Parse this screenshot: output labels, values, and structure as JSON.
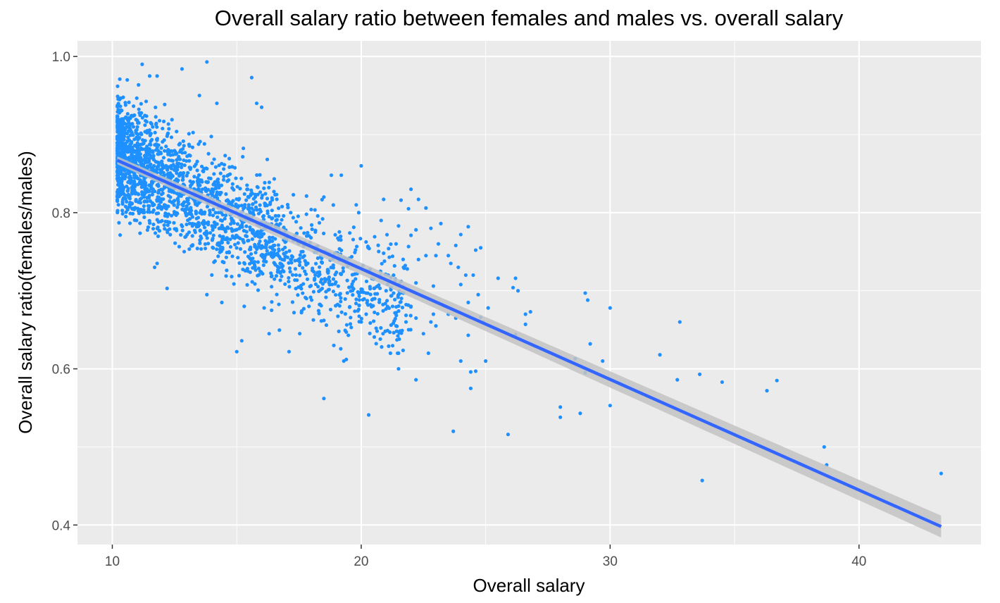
{
  "chart_data": {
    "type": "scatter",
    "title": "Overall salary ratio between females and males vs. overall salary",
    "xlabel": "Overall salary",
    "ylabel": "Overall salary ratio(females/males)",
    "xlim": [
      8.6,
      44.9
    ],
    "ylim": [
      0.375,
      1.02
    ],
    "x_ticks": [
      10,
      20,
      30,
      40
    ],
    "y_ticks": [
      0.4,
      0.6,
      0.8,
      1.0
    ],
    "x_tick_labels": [
      "10",
      "20",
      "30",
      "40"
    ],
    "y_tick_labels": [
      "0.4",
      "0.6",
      "0.8",
      "1.0"
    ],
    "x_minor_ticks": [
      15,
      25,
      35
    ],
    "y_minor_ticks": [
      0.5,
      0.7,
      0.9
    ],
    "grid": true,
    "colors": {
      "panel_background": "#EBEBEB",
      "grid": "#FFFFFF",
      "points": "#1E90FF",
      "trend_line": "#3366FF",
      "confidence_band": "#C3C3C3",
      "tick_text": "#4D4D4D"
    },
    "trend_line": {
      "method": "linear",
      "x": [
        10.2,
        43.3
      ],
      "y": [
        0.867,
        0.398
      ],
      "band_halfwidth_start": 0.005,
      "band_halfwidth_end": 0.014
    },
    "cluster": {
      "x_range": [
        10.2,
        22.0
      ],
      "y_range": [
        0.62,
        0.99
      ],
      "count": 2400,
      "note_ratio_trend": "dense around x 11-16, y 0.72-0.92"
    },
    "series": [
      {
        "values": [
          [
            11.2,
            0.99
          ],
          [
            12.8,
            0.984
          ],
          [
            13.8,
            0.993
          ],
          [
            15.6,
            0.973
          ],
          [
            10.3,
            0.971
          ],
          [
            10.6,
            0.97
          ],
          [
            11.5,
            0.975
          ],
          [
            11.8,
            0.975
          ],
          [
            15.8,
            0.94
          ],
          [
            16.0,
            0.935
          ],
          [
            13.5,
            0.95
          ],
          [
            14.2,
            0.94
          ],
          [
            20.0,
            0.86
          ],
          [
            19.2,
            0.848
          ],
          [
            18.8,
            0.848
          ],
          [
            18.5,
            0.82
          ],
          [
            19.8,
            0.81
          ],
          [
            19.9,
            0.8
          ],
          [
            20.9,
            0.817
          ],
          [
            21.6,
            0.816
          ],
          [
            22.0,
            0.83
          ],
          [
            22.3,
            0.817
          ],
          [
            21.9,
            0.805
          ],
          [
            22.6,
            0.806
          ],
          [
            21.5,
            0.783
          ],
          [
            20.8,
            0.79
          ],
          [
            22.2,
            0.778
          ],
          [
            22.8,
            0.78
          ],
          [
            23.2,
            0.786
          ],
          [
            24.0,
            0.772
          ],
          [
            24.3,
            0.782
          ],
          [
            24.6,
            0.752
          ],
          [
            24.8,
            0.755
          ],
          [
            23.8,
            0.758
          ],
          [
            23.5,
            0.745
          ],
          [
            23.1,
            0.76
          ],
          [
            22.0,
            0.771
          ],
          [
            21.4,
            0.76
          ],
          [
            21.1,
            0.754
          ],
          [
            20.9,
            0.748
          ],
          [
            22.3,
            0.74
          ],
          [
            22.6,
            0.745
          ],
          [
            23.0,
            0.745
          ],
          [
            21.7,
            0.73
          ],
          [
            21.3,
            0.72
          ],
          [
            20.5,
            0.715
          ],
          [
            20.0,
            0.702
          ],
          [
            19.6,
            0.705
          ],
          [
            21.0,
            0.7
          ],
          [
            21.3,
            0.697
          ],
          [
            21.7,
            0.697
          ],
          [
            22.2,
            0.71
          ],
          [
            22.9,
            0.706
          ],
          [
            23.6,
            0.735
          ],
          [
            23.9,
            0.73
          ],
          [
            24.2,
            0.72
          ],
          [
            24.5,
            0.72
          ],
          [
            25.5,
            0.716
          ],
          [
            26.2,
            0.716
          ],
          [
            26.1,
            0.704
          ],
          [
            24.0,
            0.708
          ],
          [
            24.7,
            0.695
          ],
          [
            24.3,
            0.685
          ],
          [
            23.5,
            0.67
          ],
          [
            23.8,
            0.665
          ],
          [
            24.8,
            0.666
          ],
          [
            25.1,
            0.678
          ],
          [
            24.9,
            0.66
          ],
          [
            22.9,
            0.67
          ],
          [
            22.0,
            0.68
          ],
          [
            22.2,
            0.665
          ],
          [
            21.8,
            0.66
          ],
          [
            21.4,
            0.655
          ],
          [
            21.2,
            0.656
          ],
          [
            20.6,
            0.652
          ],
          [
            20.5,
            0.661
          ],
          [
            20.0,
            0.66
          ],
          [
            19.6,
            0.653
          ],
          [
            20.2,
            0.67
          ],
          [
            20.1,
            0.698
          ],
          [
            22.8,
            0.66
          ],
          [
            23.0,
            0.655
          ],
          [
            24.3,
            0.643
          ],
          [
            22.5,
            0.645
          ],
          [
            26.2,
            0.644
          ],
          [
            26.3,
            0.7
          ],
          [
            26.6,
            0.67
          ],
          [
            26.8,
            0.673
          ],
          [
            26.6,
            0.657
          ],
          [
            24.0,
            0.61
          ],
          [
            25.0,
            0.61
          ],
          [
            22.7,
            0.62
          ],
          [
            21.5,
            0.62
          ],
          [
            21.5,
            0.6
          ],
          [
            22.2,
            0.586
          ],
          [
            24.4,
            0.596
          ],
          [
            24.6,
            0.597
          ],
          [
            24.4,
            0.575
          ],
          [
            19.3,
            0.61
          ],
          [
            19.4,
            0.612
          ],
          [
            18.9,
            0.63
          ],
          [
            19.1,
            0.648
          ],
          [
            18.5,
            0.662
          ],
          [
            18.6,
            0.656
          ],
          [
            17.9,
            0.68
          ],
          [
            17.8,
            0.69
          ],
          [
            15.2,
            0.636
          ],
          [
            15.0,
            0.622
          ],
          [
            17.1,
            0.622
          ],
          [
            16.3,
            0.645
          ],
          [
            18.5,
            0.562
          ],
          [
            20.3,
            0.541
          ],
          [
            23.7,
            0.52
          ],
          [
            25.9,
            0.516
          ],
          [
            28.0,
            0.551
          ],
          [
            28.0,
            0.538
          ],
          [
            28.8,
            0.543
          ],
          [
            28.6,
            0.613
          ],
          [
            29.0,
            0.595
          ],
          [
            29.2,
            0.632
          ],
          [
            29.7,
            0.61
          ],
          [
            29.0,
            0.697
          ],
          [
            29.1,
            0.688
          ],
          [
            30.0,
            0.678
          ],
          [
            30.0,
            0.553
          ],
          [
            32.0,
            0.618
          ],
          [
            32.7,
            0.586
          ],
          [
            32.8,
            0.66
          ],
          [
            33.6,
            0.593
          ],
          [
            33.7,
            0.457
          ],
          [
            34.5,
            0.583
          ],
          [
            36.3,
            0.572
          ],
          [
            36.7,
            0.585
          ],
          [
            38.6,
            0.5
          ],
          [
            38.7,
            0.477
          ],
          [
            43.3,
            0.466
          ],
          [
            12.2,
            0.703
          ],
          [
            10.8,
            0.805
          ],
          [
            11.7,
            0.73
          ],
          [
            11.8,
            0.735
          ],
          [
            13.8,
            0.695
          ],
          [
            14.4,
            0.685
          ],
          [
            15.3,
            0.68
          ],
          [
            16.1,
            0.678
          ],
          [
            16.4,
            0.675
          ],
          [
            17.3,
            0.672
          ],
          [
            17.6,
            0.672
          ]
        ]
      }
    ]
  }
}
